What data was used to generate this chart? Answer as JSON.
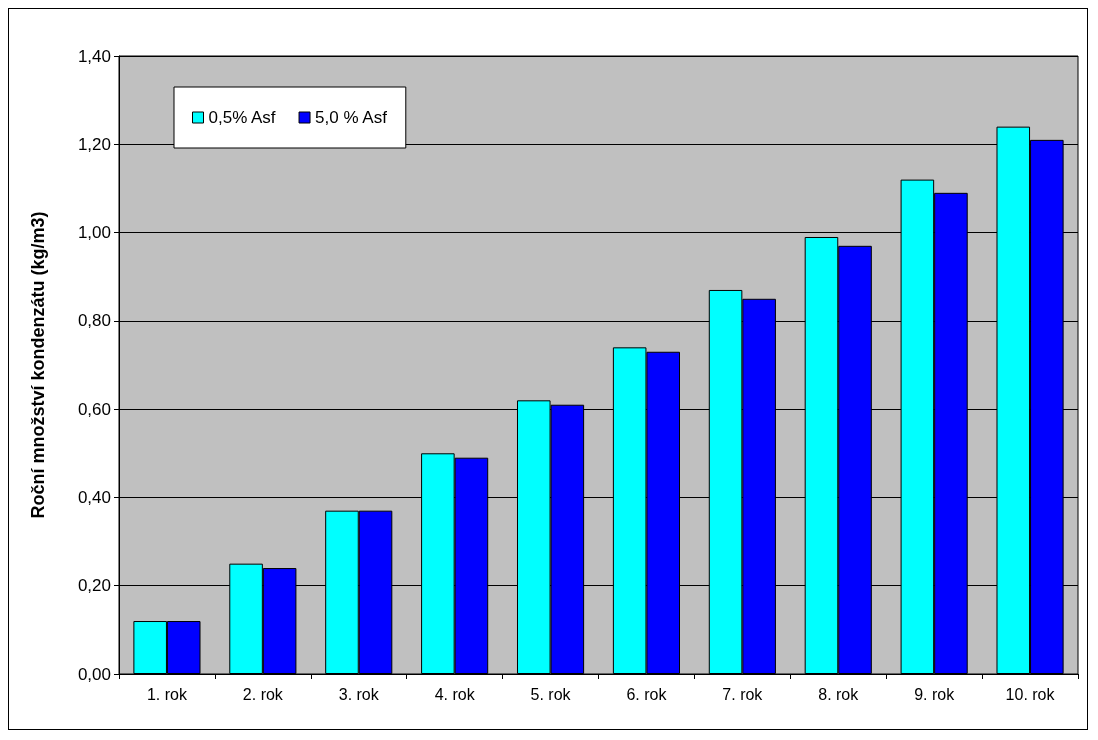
{
  "chart_data": {
    "type": "bar",
    "ylabel": "Roční množství kondenzátu (kg/m3)",
    "categories": [
      "1. rok",
      "2. rok",
      "3. rok",
      "4. rok",
      "5. rok",
      "6. rok",
      "7. rok",
      "8. rok",
      "9. rok",
      "10. rok"
    ],
    "series": [
      {
        "name": "0,5% Asf",
        "color": "#00ffff",
        "values": [
          0.12,
          0.25,
          0.37,
          0.5,
          0.62,
          0.74,
          0.87,
          0.99,
          1.12,
          1.24
        ]
      },
      {
        "name": "5,0 % Asf",
        "color": "#0000ff",
        "values": [
          0.12,
          0.24,
          0.37,
          0.49,
          0.61,
          0.73,
          0.85,
          0.97,
          1.09,
          1.21
        ]
      }
    ],
    "ylim": [
      0,
      1.4
    ],
    "yticks": [
      {
        "value": 0,
        "label": "0,00"
      },
      {
        "value": 0.2,
        "label": "0,20"
      },
      {
        "value": 0.4,
        "label": "0,40"
      },
      {
        "value": 0.6,
        "label": "0,60"
      },
      {
        "value": 0.8,
        "label": "0,80"
      },
      {
        "value": 1.0,
        "label": "1,00"
      },
      {
        "value": 1.2,
        "label": "1,20"
      },
      {
        "value": 1.4,
        "label": "1,40"
      }
    ],
    "grid": "y",
    "legend": "top left"
  }
}
